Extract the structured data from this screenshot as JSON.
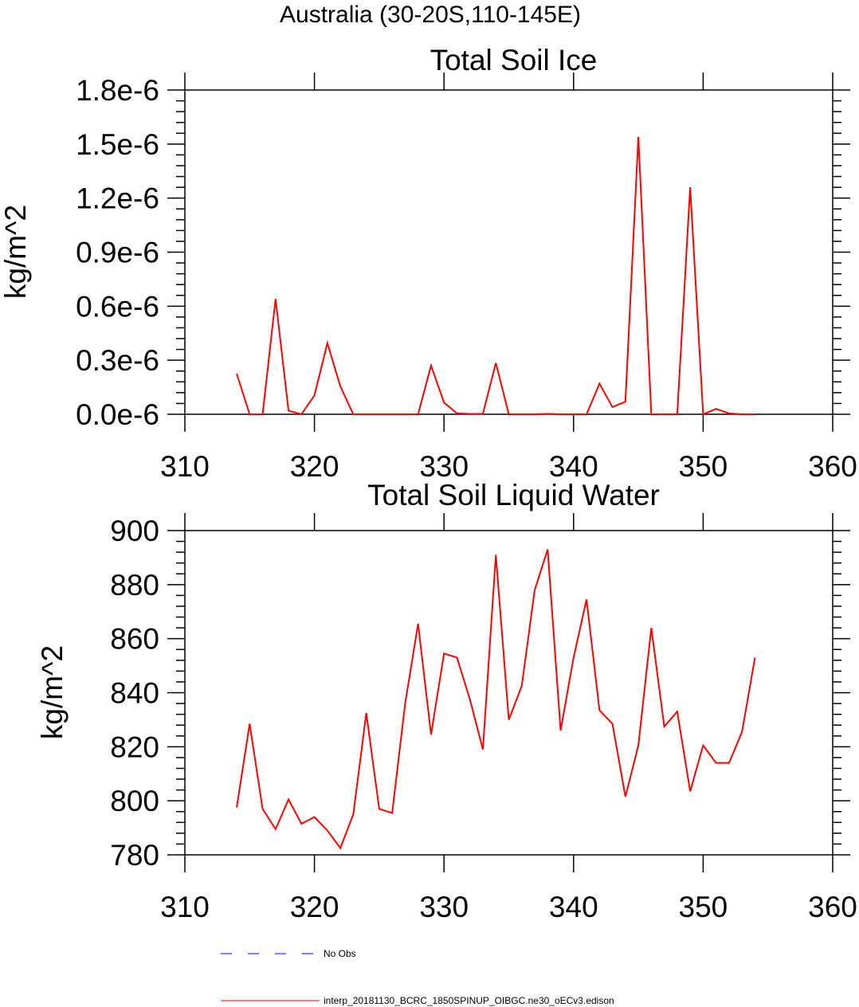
{
  "figure": {
    "title": "Australia (30-20S,110-145E)"
  },
  "legend": {
    "entries": [
      {
        "label": "No Obs",
        "color": "#0000ff",
        "style": "dashed"
      },
      {
        "label": "interp_20181130_BCRC_1850SPINUP_OIBGC.ne30_oECv3.edison",
        "color": "#ff0000",
        "style": "solid"
      }
    ]
  },
  "chart_data": [
    {
      "type": "line",
      "title": "Total Soil Ice",
      "xlabel": "",
      "ylabel": "kg/m^2",
      "xlim": [
        310,
        360
      ],
      "ylim": [
        0,
        1.8e-06
      ],
      "xticks": [
        310,
        320,
        330,
        340,
        350,
        360
      ],
      "xtick_labels": [
        "310",
        "320",
        "330",
        "340",
        "350",
        "360"
      ],
      "yticks": [
        0,
        3e-07,
        6e-07,
        9e-07,
        1.2e-06,
        1.5e-06,
        1.8e-06
      ],
      "ytick_labels": [
        "0.0e-6",
        "0.3e-6",
        "0.6e-6",
        "0.9e-6",
        "1.2e-6",
        "1.5e-6",
        "1.8e-6"
      ],
      "grid": false,
      "series": [
        {
          "name": "interp_20181130_BCRC_1850SPINUP_OIBGC.ne30_oECv3.edison",
          "color": "#ff0000",
          "x": [
            314,
            315,
            316,
            317,
            318,
            319,
            320,
            321,
            322,
            323,
            324,
            325,
            326,
            327,
            328,
            329,
            330,
            331,
            332,
            333,
            334,
            335,
            336,
            337,
            338,
            339,
            340,
            341,
            342,
            343,
            344,
            345,
            346,
            347,
            348,
            349,
            350,
            351,
            352,
            353,
            354
          ],
          "values": [
            2.25e-07,
            0,
            0,
            6.4e-07,
            2e-08,
            0,
            1.05e-07,
            3.95e-07,
            1.55e-07,
            0,
            0,
            0,
            0,
            0,
            0,
            2.7e-07,
            6.5e-08,
            5e-09,
            2e-09,
            2e-09,
            2.85e-07,
            0,
            0,
            0,
            2e-09,
            0,
            0,
            0,
            1.7e-07,
            4e-08,
            7e-08,
            1.54e-06,
            0,
            0,
            0,
            1.26e-06,
            0,
            3e-08,
            5e-09,
            0,
            0
          ]
        }
      ]
    },
    {
      "type": "line",
      "title": "Total Soil Liquid Water",
      "xlabel": "",
      "ylabel": "kg/m^2",
      "xlim": [
        310,
        360
      ],
      "ylim": [
        780,
        900
      ],
      "xticks": [
        310,
        320,
        330,
        340,
        350,
        360
      ],
      "xtick_labels": [
        "310",
        "320",
        "330",
        "340",
        "350",
        "360"
      ],
      "yticks": [
        780,
        800,
        820,
        840,
        860,
        880,
        900
      ],
      "ytick_labels": [
        "780",
        "800",
        "820",
        "840",
        "860",
        "880",
        "900"
      ],
      "grid": false,
      "series": [
        {
          "name": "interp_20181130_BCRC_1850SPINUP_OIBGC.ne30_oECv3.edison",
          "color": "#ff0000",
          "x": [
            314,
            315,
            316,
            317,
            318,
            319,
            320,
            321,
            322,
            323,
            324,
            325,
            326,
            327,
            328,
            329,
            330,
            331,
            332,
            333,
            334,
            335,
            336,
            337,
            338,
            339,
            340,
            341,
            342,
            343,
            344,
            345,
            346,
            347,
            348,
            349,
            350,
            351,
            352,
            353,
            354
          ],
          "values": [
            797.5,
            828.5,
            797,
            789.5,
            800.5,
            791.5,
            794,
            789,
            782.5,
            795,
            832.5,
            797,
            795.5,
            836,
            865.5,
            824.5,
            854.5,
            853,
            837.5,
            819,
            891,
            830,
            842.5,
            878,
            893,
            826,
            853,
            874.5,
            833.5,
            828.5,
            801.5,
            820.5,
            864,
            827.5,
            833,
            803.5,
            820.5,
            814,
            814,
            825.5,
            853
          ]
        }
      ]
    }
  ]
}
